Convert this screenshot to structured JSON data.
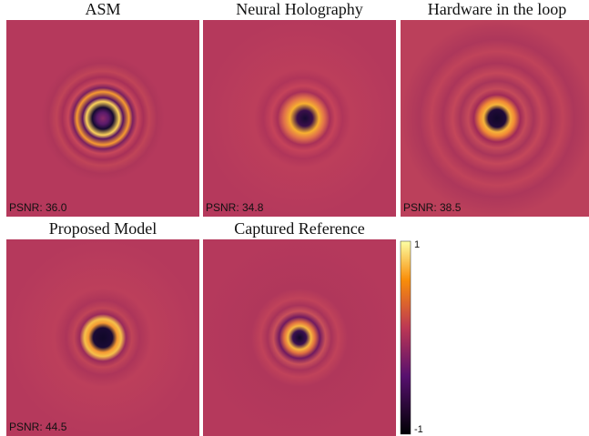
{
  "panels": [
    {
      "title": "ASM",
      "psnr": "PSNR: 36.0"
    },
    {
      "title": "Neural Holography",
      "psnr": "PSNR: 34.8"
    },
    {
      "title": "Hardware in the loop",
      "psnr": "PSNR: 38.5"
    },
    {
      "title": "Proposed Model",
      "psnr": "PSNR: 44.5"
    },
    {
      "title": "Captured Reference",
      "psnr": ""
    }
  ],
  "colorbar": {
    "max": 1,
    "min": -1
  }
}
